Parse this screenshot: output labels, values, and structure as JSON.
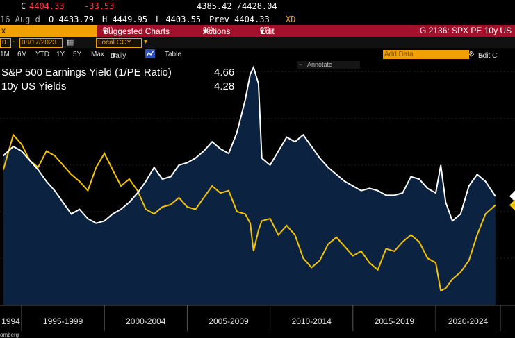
{
  "quote": {
    "prefix": "C",
    "last": "4404.33",
    "change": "-33.53",
    "range": "4385.42 /4428.04",
    "date": "16 Aug d",
    "open": "O 4433.79",
    "high": "H 4449.95",
    "low": "L 4403.55",
    "prev": "Prev 4404.33",
    "xd": "XD"
  },
  "menubar": {
    "left_fragment": "x",
    "suggested_num": "94)",
    "suggested_label": "Suggested Charts",
    "actions_num": "96)",
    "actions_label": "Actions",
    "edit_num": "97)",
    "edit_label": "Edit",
    "title": "G 2136: SPX PE 10y US"
  },
  "controls": {
    "start_date": "0",
    "end_date": "08/17/2023",
    "currency": "Local CCY"
  },
  "periods": {
    "items": [
      "1M",
      "6M",
      "YTD",
      "1Y",
      "5Y",
      "Max"
    ],
    "frequency": "Daily",
    "table_label": "Table",
    "add_data_placeholder": "Add Data",
    "edit_chart": "Edit C"
  },
  "annotate_label": "Annotate",
  "footer": "omberg",
  "colors": {
    "price_up": "#ff3b3b",
    "menubar": "#a3102b",
    "area_fill": "#0b2340",
    "earnings_line": "#ffffff",
    "yield_line": "#f5c400",
    "amber": "#f0a000"
  },
  "chart_data": {
    "type": "area",
    "x_tick_labels": [
      "1994",
      "1995-1999",
      "2000-2004",
      "2005-2009",
      "2010-2014",
      "2015-2019",
      "2020-2024"
    ],
    "legend_position": "top-left",
    "grid": true,
    "x": [
      1993.9,
      1994.5,
      1995.0,
      1995.5,
      1996.0,
      1996.5,
      1997.0,
      1997.5,
      1998.0,
      1998.5,
      1999.0,
      1999.5,
      2000.0,
      2000.5,
      2001.0,
      2001.5,
      2002.0,
      2002.5,
      2003.0,
      2003.5,
      2004.0,
      2004.5,
      2005.0,
      2005.5,
      2006.0,
      2006.5,
      2007.0,
      2007.5,
      2008.0,
      2008.5,
      2008.8,
      2009.0,
      2009.3,
      2009.5,
      2010.0,
      2010.5,
      2011.0,
      2011.5,
      2012.0,
      2012.5,
      2013.0,
      2013.5,
      2014.0,
      2014.5,
      2015.0,
      2015.5,
      2016.0,
      2016.5,
      2017.0,
      2017.5,
      2018.0,
      2018.5,
      2019.0,
      2019.5,
      2020.0,
      2020.3,
      2020.6,
      2021.0,
      2021.5,
      2022.0,
      2022.5,
      2023.0,
      2023.6
    ],
    "series": [
      {
        "name": "S&P 500 Earnings Yield (1/PE Ratio)",
        "last": "4.66",
        "values": [
          6.4,
          6.8,
          6.6,
          6.2,
          5.8,
          5.3,
          4.9,
          4.4,
          3.9,
          4.1,
          3.7,
          3.5,
          3.6,
          3.9,
          4.1,
          4.4,
          4.8,
          5.3,
          5.9,
          5.4,
          5.5,
          6.0,
          6.1,
          6.3,
          6.6,
          7.0,
          6.7,
          6.5,
          7.4,
          8.8,
          9.9,
          10.2,
          9.5,
          6.3,
          6.0,
          6.6,
          7.2,
          7.0,
          7.3,
          6.8,
          6.3,
          5.9,
          5.6,
          5.3,
          5.1,
          4.9,
          5.0,
          4.9,
          4.7,
          4.7,
          4.8,
          5.5,
          5.4,
          5.0,
          4.8,
          6.0,
          4.4,
          3.6,
          3.9,
          5.1,
          5.6,
          5.3,
          4.66
        ]
      },
      {
        "name": "10y US Yields",
        "last": "4.28",
        "values": [
          5.8,
          7.3,
          6.9,
          6.2,
          5.9,
          6.6,
          6.4,
          6.0,
          5.6,
          5.3,
          4.9,
          5.9,
          6.5,
          5.8,
          5.1,
          5.4,
          4.9,
          4.1,
          3.9,
          4.2,
          4.3,
          4.6,
          4.2,
          4.1,
          4.6,
          5.1,
          4.8,
          4.9,
          4.0,
          3.9,
          3.5,
          2.3,
          3.2,
          3.6,
          3.7,
          3.0,
          3.4,
          3.0,
          2.0,
          1.6,
          1.9,
          2.6,
          2.9,
          2.5,
          2.1,
          2.3,
          1.8,
          1.5,
          2.4,
          2.3,
          2.7,
          3.0,
          2.7,
          2.0,
          1.8,
          0.6,
          0.7,
          1.1,
          1.4,
          1.9,
          3.0,
          3.9,
          4.28
        ]
      }
    ]
  }
}
